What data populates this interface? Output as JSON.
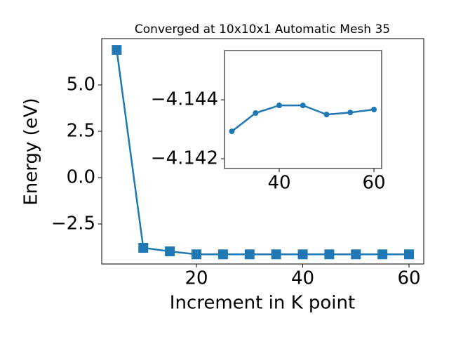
{
  "chart_data": [
    {
      "type": "line",
      "title": "Converged at 10x10x1 Automatic Mesh 35",
      "xlabel": "Increment in K point",
      "ylabel": "Energy (eV)",
      "x": [
        5,
        10,
        15,
        20,
        25,
        30,
        35,
        40,
        45,
        50,
        55,
        60
      ],
      "series": [
        {
          "color": "#1f77b4",
          "marker": "square",
          "values": [
            6.89,
            -3.79,
            -3.98,
            -4.14,
            -4.14,
            -4.14,
            -4.14,
            -4.14,
            -4.14,
            -4.14,
            -4.14,
            -4.14
          ]
        }
      ],
      "xlim": [
        2.18,
        62.77
      ],
      "ylim": [
        -4.66,
        7.5
      ],
      "xticks": [
        20,
        40,
        60
      ],
      "yticks": [
        {
          "value": 5.0,
          "label": "5.0"
        },
        {
          "value": 2.5,
          "label": "2.5"
        },
        {
          "value": 0,
          "label": "0.0"
        },
        {
          "value": -2.5,
          "label": "−2.5"
        }
      ]
    },
    {
      "type": "line",
      "x": [
        30,
        35,
        40,
        45,
        50,
        55,
        60
      ],
      "series": [
        {
          "color": "#1f77b4",
          "marker": "circle",
          "values": [
            -4.14293,
            -4.14355,
            -4.14381,
            -4.14381,
            -4.1435,
            -4.14357,
            -4.14367
          ]
        }
      ],
      "xlim": [
        28.44,
        61.63
      ],
      "ylim": [
        -4.14167,
        -4.14567
      ],
      "xticks": [
        40,
        60
      ],
      "yticks": [
        {
          "value": -4.144,
          "label": "−4.144"
        },
        {
          "value": -4.142,
          "label": "−4.142"
        }
      ]
    }
  ]
}
